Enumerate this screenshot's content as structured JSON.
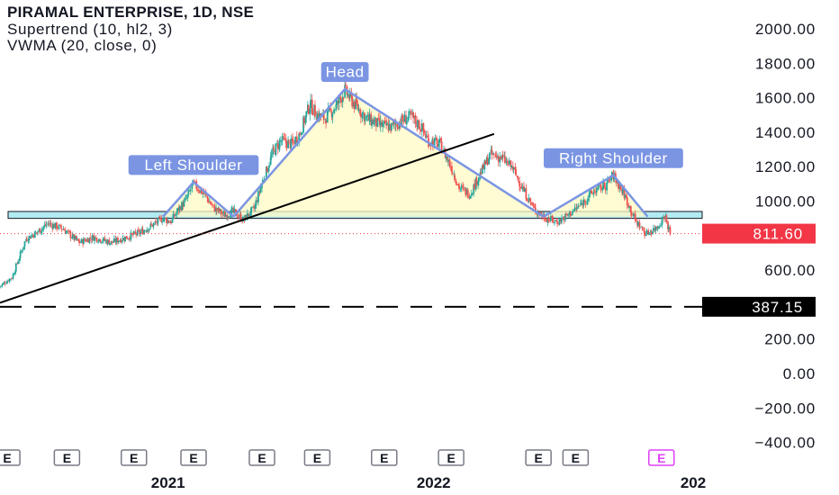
{
  "header": {
    "title": "PIRAMAL ENTERPRISE, 1D, NSE",
    "indicator_1": "Supertrend (10, hl2, 3)",
    "indicator_2": "VWMA (20, close, 0)"
  },
  "colors": {
    "background": "#ffffff",
    "axis_text": "#131722",
    "up_candle": "#26a69a",
    "down_candle": "#ef5350",
    "pattern_line": "#7b95e3",
    "pattern_fill": "#fff9c4",
    "neckline_zone": "#b2ebf2",
    "last_price_badge": "#f23645",
    "level_badge": "#000000",
    "earnings_marker": "#787b86",
    "earnings_marker_upcoming": "#e040fb"
  },
  "chart_data": {
    "type": "candlestick",
    "title": "PIRAMAL ENTERPRISE, 1D, NSE",
    "ylim": [
      -480,
      2060
    ],
    "y_ticks": [
      2000,
      1800,
      1600,
      1400,
      1200,
      1000,
      600,
      200,
      0,
      -200,
      -400
    ],
    "y_tick_labels": [
      "2000.00",
      "1800.00",
      "1600.00",
      "1400.00",
      "1200.00",
      "1000.00",
      "600.00",
      "200.00",
      "0.00",
      "−200.00",
      "−400.00"
    ],
    "x_range": [
      "2020-05-15",
      "2023-01-05"
    ],
    "x_ticks": [
      {
        "date": "2021-01-01",
        "label": "2021"
      },
      {
        "date": "2022-01-01",
        "label": "2022"
      },
      {
        "date": "2023-01-01",
        "label": "202"
      }
    ],
    "grid": false,
    "last_price": {
      "value": 811.6,
      "label": "811.60"
    },
    "horizontal_level": {
      "value": 387.15,
      "label": "387.15",
      "style": "dashed"
    },
    "neckline_zone": {
      "y_range": [
        900,
        940
      ],
      "x_range": [
        "2020-05-15",
        "2023-01-05"
      ]
    },
    "trendline": {
      "points": [
        {
          "date": "2020-05-15",
          "price": 410
        },
        {
          "date": "2022-03-25",
          "price": 1390
        }
      ]
    },
    "price_series": [
      {
        "date": "2020-05-15",
        "close": 505
      },
      {
        "date": "2020-06-01",
        "close": 560
      },
      {
        "date": "2020-06-20",
        "close": 780
      },
      {
        "date": "2020-07-05",
        "close": 820
      },
      {
        "date": "2020-07-20",
        "close": 870
      },
      {
        "date": "2020-08-10",
        "close": 840
      },
      {
        "date": "2020-09-01",
        "close": 760
      },
      {
        "date": "2020-09-20",
        "close": 790
      },
      {
        "date": "2020-10-15",
        "close": 760
      },
      {
        "date": "2020-11-05",
        "close": 790
      },
      {
        "date": "2020-11-25",
        "close": 820
      },
      {
        "date": "2020-12-10",
        "close": 860
      },
      {
        "date": "2020-12-25",
        "close": 900
      },
      {
        "date": "2021-01-05",
        "close": 880
      },
      {
        "date": "2021-01-15",
        "close": 950
      },
      {
        "date": "2021-01-25",
        "close": 1000
      },
      {
        "date": "2021-02-05",
        "close": 1100
      },
      {
        "date": "2021-02-20",
        "close": 1040
      },
      {
        "date": "2021-03-05",
        "close": 960
      },
      {
        "date": "2021-03-20",
        "close": 920
      },
      {
        "date": "2021-04-01",
        "close": 940
      },
      {
        "date": "2021-04-15",
        "close": 890
      },
      {
        "date": "2021-04-30",
        "close": 960
      },
      {
        "date": "2021-05-10",
        "close": 1100
      },
      {
        "date": "2021-05-25",
        "close": 1280
      },
      {
        "date": "2021-06-05",
        "close": 1350
      },
      {
        "date": "2021-06-20",
        "close": 1330
      },
      {
        "date": "2021-07-01",
        "close": 1390
      },
      {
        "date": "2021-07-15",
        "close": 1560
      },
      {
        "date": "2021-07-25",
        "close": 1500
      },
      {
        "date": "2021-08-05",
        "close": 1480
      },
      {
        "date": "2021-08-20",
        "close": 1550
      },
      {
        "date": "2021-09-01",
        "close": 1640
      },
      {
        "date": "2021-09-15",
        "close": 1560
      },
      {
        "date": "2021-10-01",
        "close": 1480
      },
      {
        "date": "2021-10-20",
        "close": 1440
      },
      {
        "date": "2021-11-05",
        "close": 1430
      },
      {
        "date": "2021-11-20",
        "close": 1470
      },
      {
        "date": "2021-12-01",
        "close": 1490
      },
      {
        "date": "2021-12-15",
        "close": 1430
      },
      {
        "date": "2021-12-25",
        "close": 1350
      },
      {
        "date": "2022-01-10",
        "close": 1330
      },
      {
        "date": "2022-01-25",
        "close": 1200
      },
      {
        "date": "2022-02-05",
        "close": 1080
      },
      {
        "date": "2022-02-20",
        "close": 1040
      },
      {
        "date": "2022-03-05",
        "close": 1150
      },
      {
        "date": "2022-03-20",
        "close": 1270
      },
      {
        "date": "2022-04-05",
        "close": 1250
      },
      {
        "date": "2022-04-20",
        "close": 1190
      },
      {
        "date": "2022-05-05",
        "close": 1060
      },
      {
        "date": "2022-05-20",
        "close": 950
      },
      {
        "date": "2022-06-05",
        "close": 900
      },
      {
        "date": "2022-06-20",
        "close": 880
      },
      {
        "date": "2022-07-05",
        "close": 920
      },
      {
        "date": "2022-07-20",
        "close": 970
      },
      {
        "date": "2022-08-10",
        "close": 1060
      },
      {
        "date": "2022-08-25",
        "close": 1090
      },
      {
        "date": "2022-09-05",
        "close": 1150
      },
      {
        "date": "2022-09-20",
        "close": 1040
      },
      {
        "date": "2022-10-05",
        "close": 890
      },
      {
        "date": "2022-10-20",
        "close": 810
      },
      {
        "date": "2022-11-05",
        "close": 850
      },
      {
        "date": "2022-11-15",
        "close": 920
      },
      {
        "date": "2022-11-22",
        "close": 811.6
      }
    ],
    "annotations": [
      {
        "label": "Left Shoulder",
        "points": [
          {
            "date": "2020-12-25",
            "price": 910
          },
          {
            "date": "2021-02-05",
            "price": 1110
          },
          {
            "date": "2021-04-01",
            "price": 910
          }
        ]
      },
      {
        "label": "Head",
        "points": [
          {
            "date": "2021-04-01",
            "price": 910
          },
          {
            "date": "2021-09-01",
            "price": 1650
          },
          {
            "date": "2022-06-01",
            "price": 910
          }
        ]
      },
      {
        "label": "Right Shoulder",
        "points": [
          {
            "date": "2022-06-01",
            "price": 910
          },
          {
            "date": "2022-09-05",
            "price": 1150
          },
          {
            "date": "2022-10-22",
            "price": 910
          }
        ]
      }
    ],
    "earnings_markers": [
      {
        "date": "2020-05-25",
        "label": "E"
      },
      {
        "date": "2020-08-15",
        "label": "E"
      },
      {
        "date": "2020-11-15",
        "label": "E"
      },
      {
        "date": "2021-02-05",
        "label": "E"
      },
      {
        "date": "2021-05-10",
        "label": "E"
      },
      {
        "date": "2021-07-25",
        "label": "E"
      },
      {
        "date": "2021-10-25",
        "label": "E"
      },
      {
        "date": "2022-01-25",
        "label": "E"
      },
      {
        "date": "2022-05-25",
        "label": "E"
      },
      {
        "date": "2022-07-15",
        "label": "E"
      },
      {
        "date": "2022-11-10",
        "label": "E",
        "upcoming": true
      }
    ]
  }
}
